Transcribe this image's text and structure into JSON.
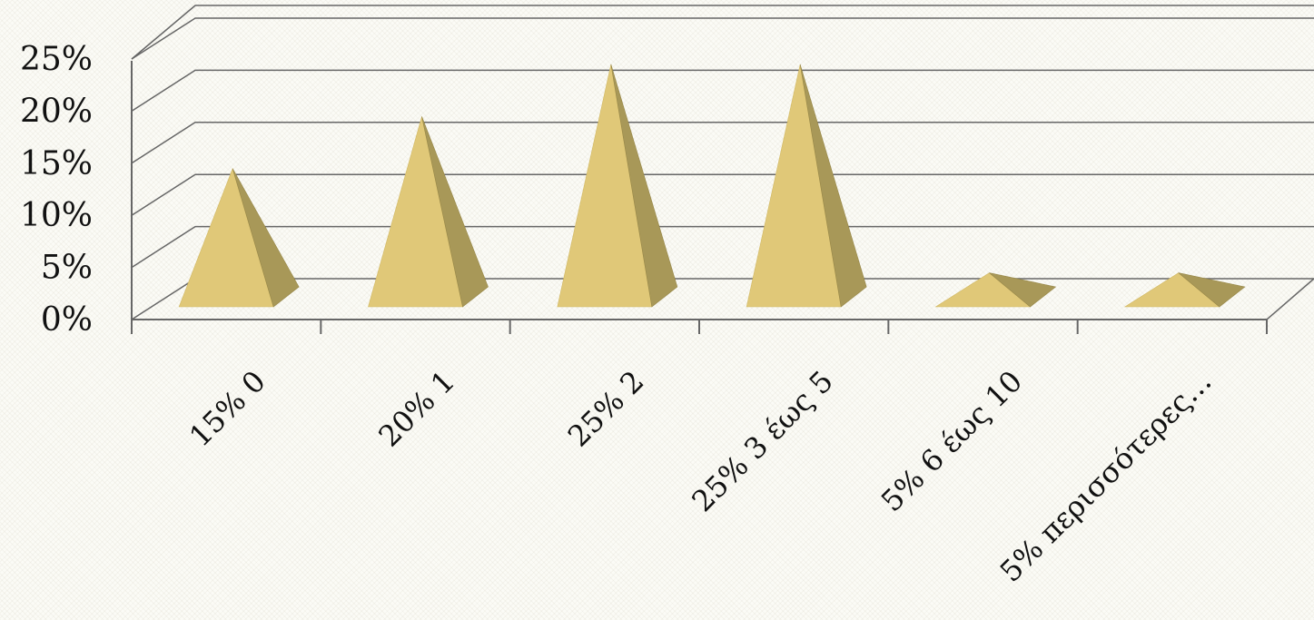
{
  "chart_data": {
    "type": "bar",
    "bar_shape": "pyramid",
    "categories": [
      "15%  0",
      "20% 1",
      "25%  2",
      "25%  3 έως 5",
      "5%   6 έως 10",
      "5% περισσότερες…"
    ],
    "values": [
      15,
      20,
      25,
      25,
      5,
      5
    ],
    "value_unit": "%",
    "yticks": [
      "0%",
      "5%",
      "10%",
      "15%",
      "20%",
      "25%"
    ],
    "ylim": [
      0,
      25
    ],
    "grid": true,
    "legend": "none",
    "title": "",
    "xlabel": "",
    "ylabel": "",
    "colors": {
      "front": "#e0c878",
      "side": "#a89858",
      "grid": "#666666",
      "text": "#111111"
    }
  }
}
